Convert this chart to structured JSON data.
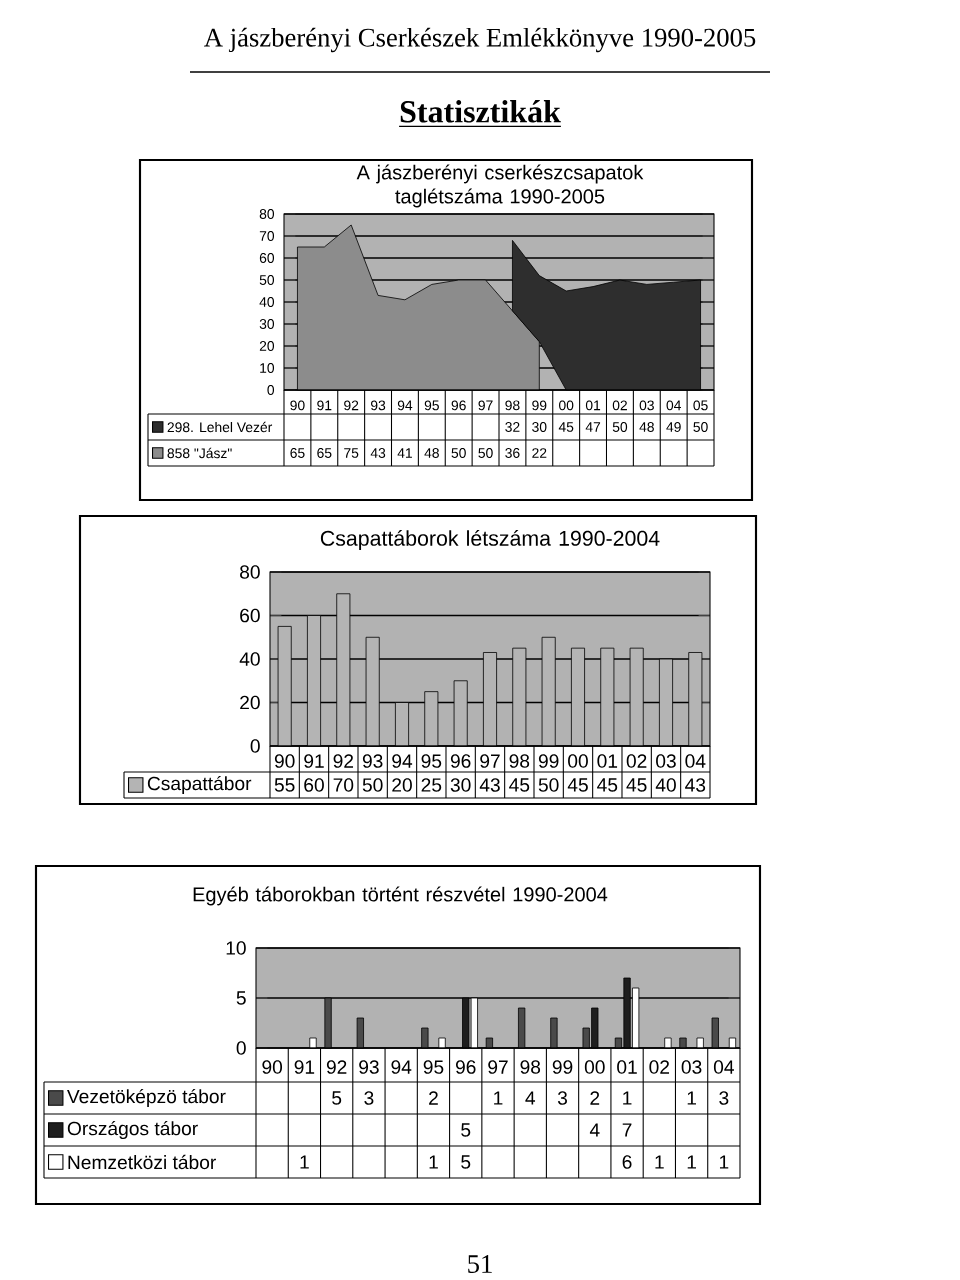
{
  "chart_data": [
    {
      "type": "other",
      "title": "A jászberényi Cserkészek Emlékkönyve 1990-2005",
      "subtitle": "Statisztikák",
      "annotations": [
        "51"
      ]
    },
    {
      "type": "area",
      "title": "A jászberényi cserkészcsapatok taglétszáma 1990-2005",
      "categories": [
        "90",
        "91",
        "92",
        "93",
        "94",
        "95",
        "96",
        "97",
        "98",
        "99",
        "00",
        "01",
        "02",
        "03",
        "04",
        "05"
      ],
      "stacked": true,
      "ylim": [
        0,
        80
      ],
      "yticks": [
        0,
        10,
        20,
        30,
        40,
        50,
        60,
        70,
        80
      ],
      "grid": "y",
      "legend": "bottom",
      "data_labels": true,
      "series": [
        {
          "name": "858 \"Jász\"",
          "color": "#8c8c8c",
          "values": [
            65,
            65,
            75,
            43,
            41,
            48,
            50,
            50,
            36,
            22,
            null,
            null,
            null,
            null,
            null,
            null
          ]
        },
        {
          "name": "298. Lehel Vezér",
          "color": "#2e2e2e",
          "values": [
            null,
            null,
            null,
            null,
            null,
            null,
            null,
            null,
            32,
            30,
            45,
            47,
            50,
            48,
            49,
            50
          ]
        }
      ]
    },
    {
      "type": "bar",
      "title": "Csapattáborok létszáma 1990-2004",
      "categories": [
        "90",
        "91",
        "92",
        "93",
        "94",
        "95",
        "96",
        "97",
        "98",
        "99",
        "00",
        "01",
        "02",
        "03",
        "04"
      ],
      "ylim": [
        0,
        80
      ],
      "yticks": [
        0,
        20,
        40,
        60,
        80
      ],
      "grid": "y",
      "legend": "bottom",
      "data_labels": true,
      "series": [
        {
          "name": "Csapattábor",
          "color": "#b4b4b4",
          "values": [
            55,
            60,
            70,
            50,
            20,
            25,
            30,
            43,
            45,
            50,
            45,
            45,
            45,
            40,
            43
          ]
        }
      ]
    },
    {
      "type": "bar",
      "title": "Egyéb táborokban történt részvétel 1990-2004",
      "categories": [
        "90",
        "91",
        "92",
        "93",
        "94",
        "95",
        "96",
        "97",
        "98",
        "99",
        "00",
        "01",
        "02",
        "03",
        "04"
      ],
      "ylim": [
        0,
        10
      ],
      "yticks": [
        0,
        5,
        10
      ],
      "grid": "y",
      "legend": "bottom",
      "data_labels": true,
      "series": [
        {
          "name": "Vezetöképzö tábor",
          "color": "#4a4a4a",
          "values": [
            null,
            null,
            5,
            3,
            null,
            2,
            null,
            1,
            4,
            3,
            2,
            1,
            null,
            1,
            3
          ]
        },
        {
          "name": "Országos tábor",
          "color": "#1e1e1e",
          "values": [
            null,
            null,
            null,
            null,
            null,
            null,
            5,
            null,
            null,
            null,
            4,
            7,
            null,
            null,
            null
          ]
        },
        {
          "name": "Nemzetközi tábor",
          "color": "#ffffff",
          "values": [
            null,
            1,
            null,
            null,
            null,
            1,
            5,
            null,
            null,
            null,
            null,
            6,
            1,
            1,
            1
          ]
        }
      ]
    }
  ]
}
